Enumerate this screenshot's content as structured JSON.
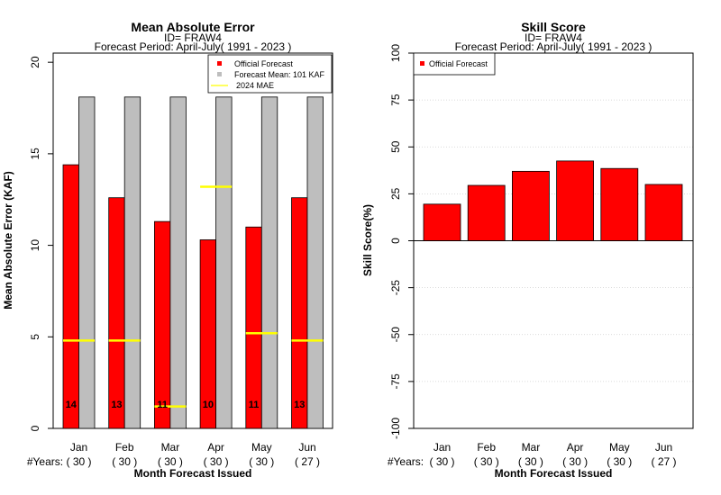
{
  "chart_data": [
    {
      "type": "bar",
      "title": "Mean Absolute Error",
      "subtitle_id": "ID= FRAW4",
      "subtitle_period": "Forecast Period: April-July( 1991 - 2023 )",
      "ylabel": "Mean Absolute Error (KAF)",
      "xlabel": "Month Forecast Issued",
      "years_label": "#Years:",
      "ylim": [
        0,
        20.5
      ],
      "yticks": [
        "0",
        "5",
        "10",
        "15",
        "20"
      ],
      "categories": [
        "Jan",
        "Feb",
        "Mar",
        "Apr",
        "May",
        "Jun"
      ],
      "years": [
        "( 30 )",
        "( 30 )",
        "( 30 )",
        "( 30 )",
        "( 30 )",
        "( 27 )"
      ],
      "series": [
        {
          "name": "Official Forecast",
          "color": "#ff0000",
          "values": [
            14.4,
            12.6,
            11.3,
            10.3,
            11.0,
            12.6
          ]
        },
        {
          "name": "Forecast Mean: 101 KAF",
          "color": "#bebebe",
          "values": [
            18.1,
            18.1,
            18.1,
            18.1,
            18.1,
            18.1
          ]
        },
        {
          "name": "2024  MAE",
          "color": "#ffff00",
          "values": [
            4.8,
            4.8,
            1.2,
            13.2,
            5.2,
            4.8
          ]
        }
      ],
      "bar_labels": [
        "14",
        "13",
        "11",
        "10",
        "11",
        "13"
      ],
      "legend_position": "top-right",
      "grid": false
    },
    {
      "type": "bar",
      "title": "Skill Score",
      "subtitle_id": "ID= FRAW4",
      "subtitle_period": "Forecast Period: April-July( 1991 - 2023 )",
      "ylabel": "Skill Score(%)",
      "xlabel": "Month Forecast Issued",
      "years_label": "#Years:",
      "ylim": [
        -100,
        100
      ],
      "yticks": [
        "-100",
        "-75",
        "-50",
        "-25",
        "0",
        "25",
        "50",
        "75",
        "100"
      ],
      "categories": [
        "Jan",
        "Feb",
        "Mar",
        "Apr",
        "May",
        "Jun"
      ],
      "years": [
        "( 30 )",
        "( 30 )",
        "( 30 )",
        "( 30 )",
        "( 30 )",
        "( 27 )"
      ],
      "series": [
        {
          "name": "Official Forecast",
          "color": "#ff0000",
          "values": [
            19.5,
            29.5,
            37.0,
            42.5,
            38.5,
            30.0
          ]
        }
      ],
      "legend_position": "top-left",
      "grid": true
    }
  ]
}
